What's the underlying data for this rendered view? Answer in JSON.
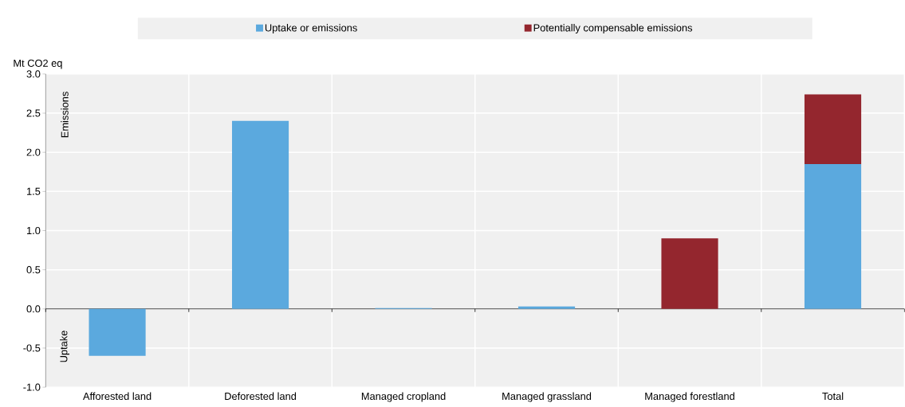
{
  "chart_data": {
    "type": "bar",
    "stacked": true,
    "categories": [
      "Afforested land",
      "Deforested land",
      "Managed cropland",
      "Managed grassland",
      "Managed forestland",
      "Total"
    ],
    "series": [
      {
        "name": "Uptake or emissions",
        "color": "#5ba9de",
        "values": [
          -0.6,
          2.4,
          0.01,
          0.03,
          null,
          1.85
        ]
      },
      {
        "name": "Potentially compensable emissions",
        "color": "#94262e",
        "values": [
          null,
          null,
          null,
          null,
          0.9,
          0.89
        ]
      }
    ],
    "ylabel": "Mt CO2 eq",
    "ylim": [
      -1.0,
      3.0
    ],
    "yticks": [
      {
        "value": -1.0,
        "label": "-1.0"
      },
      -0.5,
      {
        "value": 0,
        "label": "0.0"
      },
      0.5,
      {
        "value": 1.0,
        "label": "1.0"
      },
      1.5,
      {
        "value": 2.0,
        "label": "2.0"
      },
      2.5,
      {
        "value": 3.0,
        "label": "3.0"
      }
    ],
    "annotations": [
      "Emissions",
      "Uptake"
    ],
    "grid": true,
    "legend": "top"
  }
}
